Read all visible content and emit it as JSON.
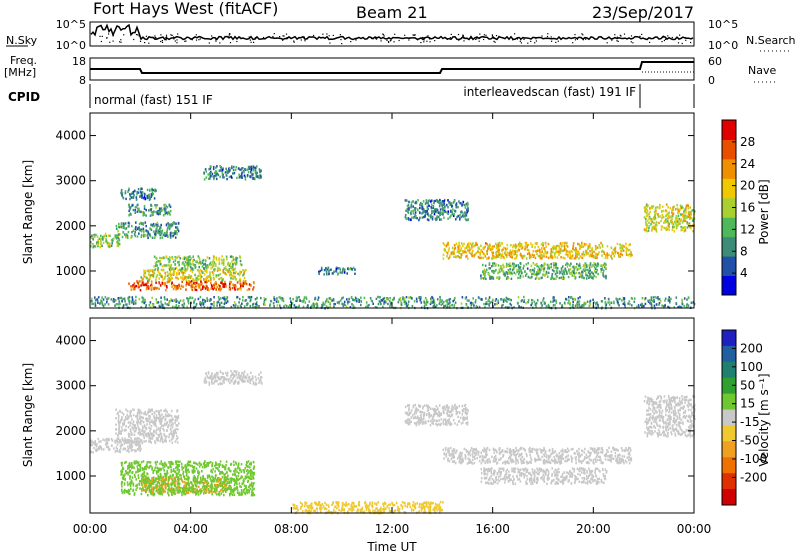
{
  "header": {
    "title": "Fort Hays West (fitACF)",
    "beam": "Beam 21",
    "date": "23/Sep/2017"
  },
  "noise_panel": {
    "left_label": "N.Sky",
    "right_label": "N.Search",
    "left_ticks": [
      "10^5",
      "10^0"
    ],
    "right_ticks": [
      "10^5",
      "10^0"
    ]
  },
  "freq_panel": {
    "left_label_line1": "Freq.",
    "left_label_line2": "[MHz]",
    "left_ticks": [
      "18",
      "8"
    ],
    "right_ticks": [
      "60",
      "0"
    ],
    "right_label": "Nave"
  },
  "cpid_panel": {
    "label": "CPID",
    "mode1": "normal (fast) 151 IF",
    "mode2": "interleavedscan (fast) 191 IF"
  },
  "x_axis": {
    "label": "Time UT",
    "ticks": [
      "00:00",
      "04:00",
      "08:00",
      "12:00",
      "16:00",
      "20:00",
      "00:00"
    ]
  },
  "power_panel": {
    "ylabel": "Slant Range [km]",
    "yticks": [
      "1000",
      "2000",
      "3000",
      "4000"
    ],
    "colorbar_label": "Power [dB]",
    "colorbar_ticks": [
      "4",
      "8",
      "12",
      "16",
      "20",
      "24",
      "28"
    ],
    "colorbar_colors": [
      "#0000e0",
      "#2050a8",
      "#3c8c78",
      "#4fb85a",
      "#a8d030",
      "#f0c800",
      "#f09000",
      "#e85000",
      "#e00000"
    ]
  },
  "velocity_panel": {
    "ylabel": "Slant Range [km]",
    "yticks": [
      "1000",
      "2000",
      "3000",
      "4000"
    ],
    "colorbar_label": "Velocity [m s⁻¹]",
    "colorbar_ticks": [
      "200",
      "100",
      "50",
      "15",
      "-15",
      "-50",
      "-100",
      "-200"
    ],
    "colorbar_colors": [
      "#2020c0",
      "#2060a0",
      "#208070",
      "#30a030",
      "#70c830",
      "#c8c8c8",
      "#f0c830",
      "#f0a020",
      "#f07000",
      "#e03000",
      "#d00000"
    ]
  },
  "chart_data": [
    {
      "type": "heatmap",
      "title": "Power",
      "xlabel": "Time UT",
      "ylabel": "Slant Range [km]",
      "x_range_hours": [
        0,
        24
      ],
      "ylim": [
        180,
        4500
      ],
      "color_scale": {
        "label": "Power [dB]",
        "min": 0,
        "max": 32
      },
      "scatter_regions": [
        {
          "t0": 0.0,
          "t1": 1.2,
          "r0": 1550,
          "r1": 1850,
          "level": 14
        },
        {
          "t0": 1.0,
          "t1": 3.5,
          "r0": 1750,
          "r1": 2100,
          "level": 10
        },
        {
          "t0": 1.5,
          "t1": 3.2,
          "r0": 2250,
          "r1": 2500,
          "level": 10
        },
        {
          "t0": 1.2,
          "t1": 2.6,
          "r0": 2600,
          "r1": 2850,
          "level": 8
        },
        {
          "t0": 4.5,
          "t1": 6.8,
          "r0": 3050,
          "r1": 3350,
          "level": 8
        },
        {
          "t0": 1.5,
          "t1": 6.5,
          "r0": 600,
          "r1": 800,
          "level": 26
        },
        {
          "t0": 2.0,
          "t1": 6.2,
          "r0": 800,
          "r1": 1050,
          "level": 18
        },
        {
          "t0": 2.5,
          "t1": 6.0,
          "r0": 1050,
          "r1": 1350,
          "level": 14
        },
        {
          "t0": 9.0,
          "t1": 10.5,
          "r0": 950,
          "r1": 1100,
          "level": 8
        },
        {
          "t0": 12.5,
          "t1": 15.0,
          "r0": 2150,
          "r1": 2600,
          "level": 8
        },
        {
          "t0": 14.0,
          "t1": 21.5,
          "r0": 1300,
          "r1": 1650,
          "level": 20
        },
        {
          "t0": 15.5,
          "t1": 20.5,
          "r0": 850,
          "r1": 1200,
          "level": 12
        },
        {
          "t0": 22.0,
          "t1": 24.0,
          "r0": 1900,
          "r1": 2500,
          "level": 18
        },
        {
          "t0": 0.0,
          "t1": 24.0,
          "r0": 200,
          "r1": 450,
          "level": 10
        }
      ]
    },
    {
      "type": "heatmap",
      "title": "Velocity",
      "xlabel": "Time UT",
      "ylabel": "Slant Range [km]",
      "x_range_hours": [
        0,
        24
      ],
      "ylim": [
        180,
        4500
      ],
      "color_scale": {
        "label": "Velocity [m s-1]",
        "min": -200,
        "max": 200
      },
      "scatter_regions": [
        {
          "t0": 0.0,
          "t1": 2.0,
          "r0": 1550,
          "r1": 1850,
          "level": 0
        },
        {
          "t0": 1.0,
          "t1": 3.5,
          "r0": 1750,
          "r1": 2500,
          "level": 0
        },
        {
          "t0": 2.0,
          "t1": 5.5,
          "r0": 650,
          "r1": 1000,
          "level": -60
        },
        {
          "t0": 1.2,
          "t1": 6.5,
          "r0": 600,
          "r1": 1350,
          "level": 30
        },
        {
          "t0": 4.5,
          "t1": 6.8,
          "r0": 3050,
          "r1": 3350,
          "level": 0
        },
        {
          "t0": 12.5,
          "t1": 15.0,
          "r0": 2150,
          "r1": 2600,
          "level": 0
        },
        {
          "t0": 14.0,
          "t1": 21.5,
          "r0": 1300,
          "r1": 1650,
          "level": 0
        },
        {
          "t0": 15.5,
          "t1": 20.5,
          "r0": 850,
          "r1": 1200,
          "level": 0
        },
        {
          "t0": 22.0,
          "t1": 24.0,
          "r0": 1900,
          "r1": 2800,
          "level": 0
        },
        {
          "t0": 8.0,
          "t1": 14.0,
          "r0": 200,
          "r1": 450,
          "level": -30
        }
      ]
    }
  ]
}
